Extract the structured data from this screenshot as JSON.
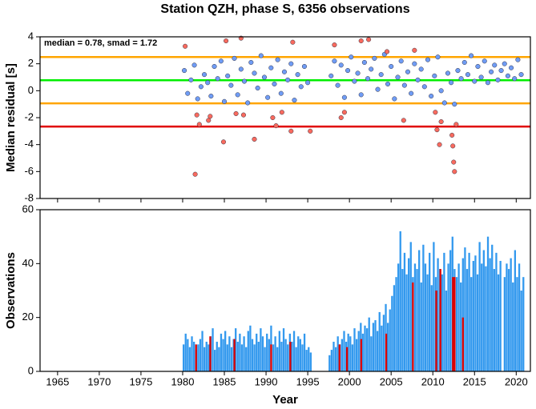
{
  "chart_data": [
    {
      "type": "scatter",
      "title": "Station QZH, phase S, 6356 observations",
      "annotation": "median = 0.78, smad = 1.72",
      "ylabel": "Median residual [s]",
      "xlim": [
        1962.9,
        2021.7
      ],
      "ylim": [
        -8,
        4
      ],
      "yticks": [
        -8,
        -6,
        -4,
        -2,
        0,
        2,
        4
      ],
      "hlines": [
        {
          "value": 2.5,
          "color": "#ffa500"
        },
        {
          "value": -0.94,
          "color": "#ffa500"
        },
        {
          "value": 0.78,
          "color": "#00ee00"
        },
        {
          "value": -2.66,
          "color": "#e00000"
        }
      ],
      "series": [
        {
          "color": "#6f9cf5",
          "x": [
            1980.2,
            1980.6,
            1981.0,
            1981.4,
            1981.8,
            1982.2,
            1982.6,
            1983.0,
            1983.4,
            1983.8,
            1984.2,
            1984.6,
            1985.0,
            1985.4,
            1985.8,
            1986.2,
            1986.6,
            1987.0,
            1987.4,
            1987.8,
            1988.2,
            1988.6,
            1989.0,
            1989.4,
            1989.8,
            1990.2,
            1990.6,
            1991.0,
            1991.4,
            1991.8,
            1992.2,
            1992.6,
            1993.0,
            1993.4,
            1993.8,
            1994.2,
            1994.6,
            1995.0,
            1997.8,
            1998.2,
            1998.6,
            1999.0,
            1999.4,
            1999.8,
            2000.2,
            2000.6,
            2001.0,
            2001.4,
            2001.8,
            2002.2,
            2002.6,
            2003.0,
            2003.4,
            2003.8,
            2004.2,
            2004.6,
            2005.0,
            2005.4,
            2005.8,
            2006.2,
            2006.6,
            2007.0,
            2007.4,
            2007.8,
            2008.2,
            2008.6,
            2009.0,
            2009.4,
            2009.8,
            2010.2,
            2010.6,
            2011.0,
            2011.4,
            2011.8,
            2012.2,
            2012.6,
            2013.0,
            2013.4,
            2013.8,
            2014.2,
            2014.6,
            2015.0,
            2015.4,
            2015.8,
            2016.2,
            2016.6,
            2017.0,
            2017.4,
            2017.8,
            2018.2,
            2018.6,
            2019.0,
            2019.4,
            2019.8,
            2020.2,
            2020.6
          ],
          "values": [
            1.5,
            -0.2,
            0.8,
            1.9,
            -0.6,
            0.3,
            1.2,
            0.6,
            -0.4,
            1.8,
            0.9,
            2.2,
            -0.8,
            1.1,
            0.4,
            2.4,
            -0.3,
            1.6,
            0.7,
            -0.9,
            2.1,
            1.3,
            0.2,
            2.6,
            1.0,
            -0.5,
            1.7,
            0.5,
            2.3,
            -0.2,
            1.4,
            0.8,
            2.0,
            -0.7,
            1.2,
            0.3,
            1.8,
            0.6,
            1.1,
            2.2,
            0.4,
            1.9,
            -0.5,
            1.5,
            2.5,
            0.7,
            1.3,
            -0.3,
            2.1,
            0.9,
            1.6,
            2.4,
            0.1,
            1.2,
            2.7,
            0.5,
            1.8,
            -0.6,
            1.0,
            2.2,
            0.4,
            1.4,
            -0.2,
            2.0,
            0.8,
            1.6,
            0.3,
            2.3,
            -0.4,
            1.1,
            2.5,
            0.0,
            -0.9,
            1.3,
            0.6,
            -1.0,
            1.5,
            0.9,
            2.1,
            1.2,
            2.6,
            0.7,
            1.8,
            1.0,
            2.2,
            0.6,
            1.4,
            1.9,
            0.8,
            1.5,
            2.0,
            1.1,
            1.7,
            0.9,
            2.3,
            1.2
          ]
        },
        {
          "color": "#f86a5e",
          "x": [
            1980.3,
            1981.5,
            1981.7,
            1982.0,
            1983.1,
            1983.3,
            1984.9,
            1985.2,
            1986.4,
            1987.0,
            1987.3,
            1988.6,
            1990.8,
            1991.2,
            1991.9,
            1993.0,
            1993.2,
            1995.3,
            1998.2,
            1999.0,
            1999.4,
            2001.4,
            2002.3,
            2004.5,
            2006.5,
            2007.8,
            2010.3,
            2010.5,
            2010.8,
            2011.0,
            2012.3,
            2012.4,
            2012.5,
            2012.6,
            2012.8
          ],
          "values": [
            3.3,
            -6.2,
            -1.8,
            -2.5,
            -2.2,
            -1.9,
            -3.8,
            3.7,
            -1.7,
            3.9,
            -1.8,
            -3.6,
            -2.0,
            -2.6,
            -1.6,
            -3.0,
            3.6,
            -3.0,
            3.4,
            -2.0,
            -1.6,
            3.7,
            3.8,
            2.9,
            -2.2,
            3.0,
            -1.6,
            -2.9,
            -4.0,
            -2.3,
            -3.3,
            -4.1,
            -5.3,
            -6.0,
            -2.5
          ]
        }
      ]
    },
    {
      "type": "bar",
      "xlabel": "Year",
      "ylabel": "Observations",
      "xlim": [
        1962.9,
        2021.7
      ],
      "xticks": [
        1965,
        1970,
        1975,
        1980,
        1985,
        1990,
        1995,
        2000,
        2005,
        2010,
        2015,
        2020
      ],
      "ylim": [
        0,
        60
      ],
      "yticks": [
        0,
        20,
        40,
        60
      ],
      "bar_width": 0.25,
      "series": [
        {
          "color": "#3399ee",
          "x": [
            1980,
            1980.25,
            1980.5,
            1980.75,
            1981,
            1981.25,
            1981.5,
            1981.75,
            1982,
            1982.25,
            1982.5,
            1982.75,
            1983,
            1983.25,
            1983.5,
            1983.75,
            1984,
            1984.25,
            1984.5,
            1984.75,
            1985,
            1985.25,
            1985.5,
            1985.75,
            1986,
            1986.25,
            1986.5,
            1986.75,
            1987,
            1987.25,
            1987.5,
            1987.75,
            1988,
            1988.25,
            1988.5,
            1988.75,
            1989,
            1989.25,
            1989.5,
            1989.75,
            1990,
            1990.25,
            1990.5,
            1990.75,
            1991,
            1991.25,
            1991.5,
            1991.75,
            1992,
            1992.25,
            1992.5,
            1992.75,
            1993,
            1993.25,
            1993.5,
            1993.75,
            1994,
            1994.25,
            1994.5,
            1994.75,
            1995,
            1995.25,
            1995.5,
            1995.75,
            1996,
            1996.25,
            1996.5,
            1996.75,
            1997,
            1997.25,
            1997.5,
            1997.75,
            1998,
            1998.25,
            1998.5,
            1998.75,
            1999,
            1999.25,
            1999.5,
            1999.75,
            2000,
            2000.25,
            2000.5,
            2000.75,
            2001,
            2001.25,
            2001.5,
            2001.75,
            2002,
            2002.25,
            2002.5,
            2002.75,
            2003,
            2003.25,
            2003.5,
            2003.75,
            2004,
            2004.25,
            2004.5,
            2004.75,
            2005,
            2005.25,
            2005.5,
            2005.75,
            2006,
            2006.25,
            2006.5,
            2006.75,
            2007,
            2007.25,
            2007.5,
            2007.75,
            2008,
            2008.25,
            2008.5,
            2008.75,
            2009,
            2009.25,
            2009.5,
            2009.75,
            2010,
            2010.25,
            2010.5,
            2010.75,
            2011,
            2011.25,
            2011.5,
            2011.75,
            2012,
            2012.25,
            2012.5,
            2012.75,
            2013,
            2013.25,
            2013.5,
            2013.75,
            2014,
            2014.25,
            2014.5,
            2014.75,
            2015,
            2015.25,
            2015.5,
            2015.75,
            2016,
            2016.25,
            2016.5,
            2016.75,
            2017,
            2017.25,
            2017.5,
            2017.75,
            2018,
            2018.25,
            2018.5,
            2018.75,
            2019,
            2019.25,
            2019.5,
            2019.75,
            2020,
            2020.25,
            2020.5,
            2020.75
          ],
          "values": [
            10,
            14,
            12,
            9,
            13,
            11,
            8,
            10,
            12,
            15,
            9,
            11,
            10,
            13,
            16,
            8,
            11,
            9,
            14,
            12,
            15,
            10,
            13,
            9,
            12,
            16,
            11,
            14,
            10,
            13,
            9,
            15,
            17,
            12,
            10,
            14,
            11,
            16,
            13,
            9,
            14,
            12,
            17,
            10,
            13,
            9,
            15,
            11,
            16,
            12,
            10,
            14,
            11,
            15,
            9,
            13,
            12,
            10,
            14,
            8,
            9,
            7,
            null,
            null,
            null,
            null,
            null,
            null,
            null,
            null,
            6,
            8,
            11,
            9,
            13,
            10,
            12,
            15,
            11,
            14,
            13,
            10,
            16,
            12,
            15,
            18,
            14,
            17,
            16,
            20,
            13,
            18,
            19,
            15,
            22,
            17,
            21,
            25,
            18,
            23,
            28,
            32,
            35,
            40,
            52,
            38,
            44,
            36,
            42,
            48,
            35,
            40,
            38,
            45,
            33,
            47,
            40,
            36,
            44,
            32,
            48,
            35,
            42,
            38,
            36,
            44,
            30,
            40,
            45,
            50,
            38,
            35,
            40,
            33,
            42,
            46,
            38,
            44,
            35,
            41,
            43,
            36,
            48,
            40,
            45,
            39,
            50,
            42,
            47,
            38,
            44,
            36,
            41,
            null,
            35,
            40,
            38,
            42,
            33,
            45,
            35,
            40,
            30,
            35
          ]
        },
        {
          "color": "#dd0000",
          "x": [
            1981.5,
            1983.2,
            1986.1,
            1990.5,
            1992.8,
            1998.7,
            1999.6,
            2001.3,
            2004.3,
            2007.5,
            2010.3,
            2010.8,
            2012.3,
            2012.5,
            2013.5
          ],
          "values": [
            10,
            13,
            12,
            10,
            11,
            10,
            9,
            12,
            14,
            33,
            30,
            38,
            35,
            35,
            20
          ]
        }
      ]
    }
  ]
}
